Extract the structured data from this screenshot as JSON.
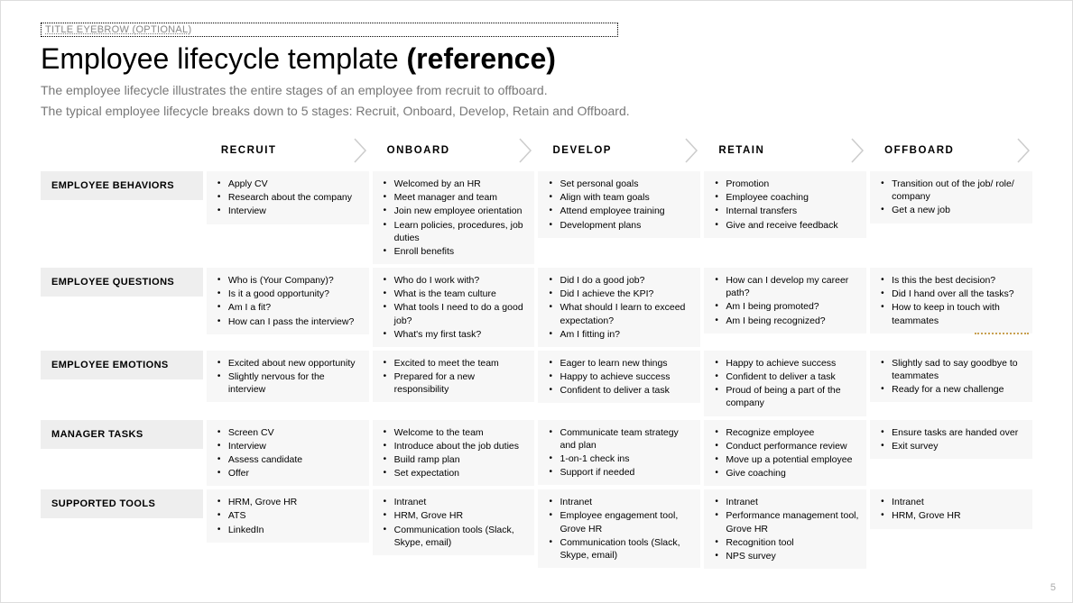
{
  "eyebrow": "TITLE EYEBROW (OPTIONAL)",
  "title_plain": "Employee lifecycle template ",
  "title_bold": "(reference)",
  "subtitle_line1": "The employee lifecycle illustrates the entire stages of an employee from recruit to offboard.",
  "subtitle_line2": "The typical employee lifecycle breaks down to 5 stages: Recruit, Onboard, Develop, Retain and Offboard.",
  "stages": [
    "RECRUIT",
    "ONBOARD",
    "DEVELOP",
    "RETAIN",
    "OFFBOARD"
  ],
  "rows": [
    {
      "label": "EMPLOYEE BEHAVIORS",
      "cells": [
        [
          "Apply CV",
          "Research about the company",
          "Interview"
        ],
        [
          "Welcomed by an HR",
          "Meet manager and team",
          "Join new employee orientation",
          "Learn policies, procedures, job duties",
          "Enroll benefits"
        ],
        [
          "Set personal goals",
          "Align with team goals",
          "Attend employee training",
          "Development plans"
        ],
        [
          "Promotion",
          "Employee coaching",
          "Internal transfers",
          "Give and receive feedback"
        ],
        [
          "Transition out of the job/ role/ company",
          "Get a new job"
        ]
      ]
    },
    {
      "label": "EMPLOYEE QUESTIONS",
      "cells": [
        [
          "Who is (Your Company)?",
          "Is it a good opportunity?",
          "Am I a fit?",
          "How can I pass the interview?"
        ],
        [
          "Who do I work with?",
          "What is the team culture",
          "What tools I need to do a good job?",
          "What's my first task?"
        ],
        [
          "Did I do a good job?",
          "Did I achieve the KPI?",
          "What should I learn to exceed expectation?",
          "Am I fitting in?"
        ],
        [
          "How can I develop my career path?",
          "Am I being promoted?",
          "Am I being recognized?"
        ],
        [
          "Is this the best decision?",
          "Did I hand over all the tasks?",
          "How to keep in touch with teammates"
        ]
      ]
    },
    {
      "label": "EMPLOYEE EMOTIONS",
      "cells": [
        [
          "Excited about new opportunity",
          "Slightly nervous for the interview"
        ],
        [
          "Excited to meet the team",
          "Prepared for a new responsibility"
        ],
        [
          "Eager to learn new things",
          "Happy to achieve success",
          "Confident to deliver a task"
        ],
        [
          "Happy to achieve success",
          "Confident to deliver a task",
          "Proud of being a part of the company"
        ],
        [
          "Slightly sad to say goodbye to teammates",
          "Ready for a new challenge"
        ]
      ]
    },
    {
      "label": "MANAGER TASKS",
      "cells": [
        [
          "Screen CV",
          "Interview",
          "Assess candidate",
          "Offer"
        ],
        [
          "Welcome to the team",
          "Introduce about the job duties",
          "Build ramp plan",
          "Set expectation"
        ],
        [
          "Communicate team strategy and plan",
          "1-on-1 check ins",
          "Support if needed"
        ],
        [
          "Recognize employee",
          "Conduct performance review",
          "Move up a potential employee",
          "Give coaching"
        ],
        [
          "Ensure tasks are handed over",
          "Exit survey"
        ]
      ]
    },
    {
      "label": "SUPPORTED TOOLS",
      "cells": [
        [
          "HRM, Grove HR",
          "ATS",
          "LinkedIn"
        ],
        [
          "Intranet",
          "HRM, Grove HR",
          "Communication tools (Slack, Skype, email)"
        ],
        [
          "Intranet",
          "Employee engagement tool, Grove HR",
          "Communication tools (Slack, Skype, email)"
        ],
        [
          "Intranet",
          "Performance management tool, Grove HR",
          "Recognition tool",
          "NPS survey"
        ],
        [
          "Intranet",
          "HRM, Grove HR"
        ]
      ]
    }
  ],
  "page_number": "5",
  "colors": {
    "row_label_bg": "#eeeeee",
    "cell_bg": "#f7f7f7",
    "arrow_stroke": "#cccccc",
    "text": "#000000",
    "subtitle": "#777777"
  }
}
